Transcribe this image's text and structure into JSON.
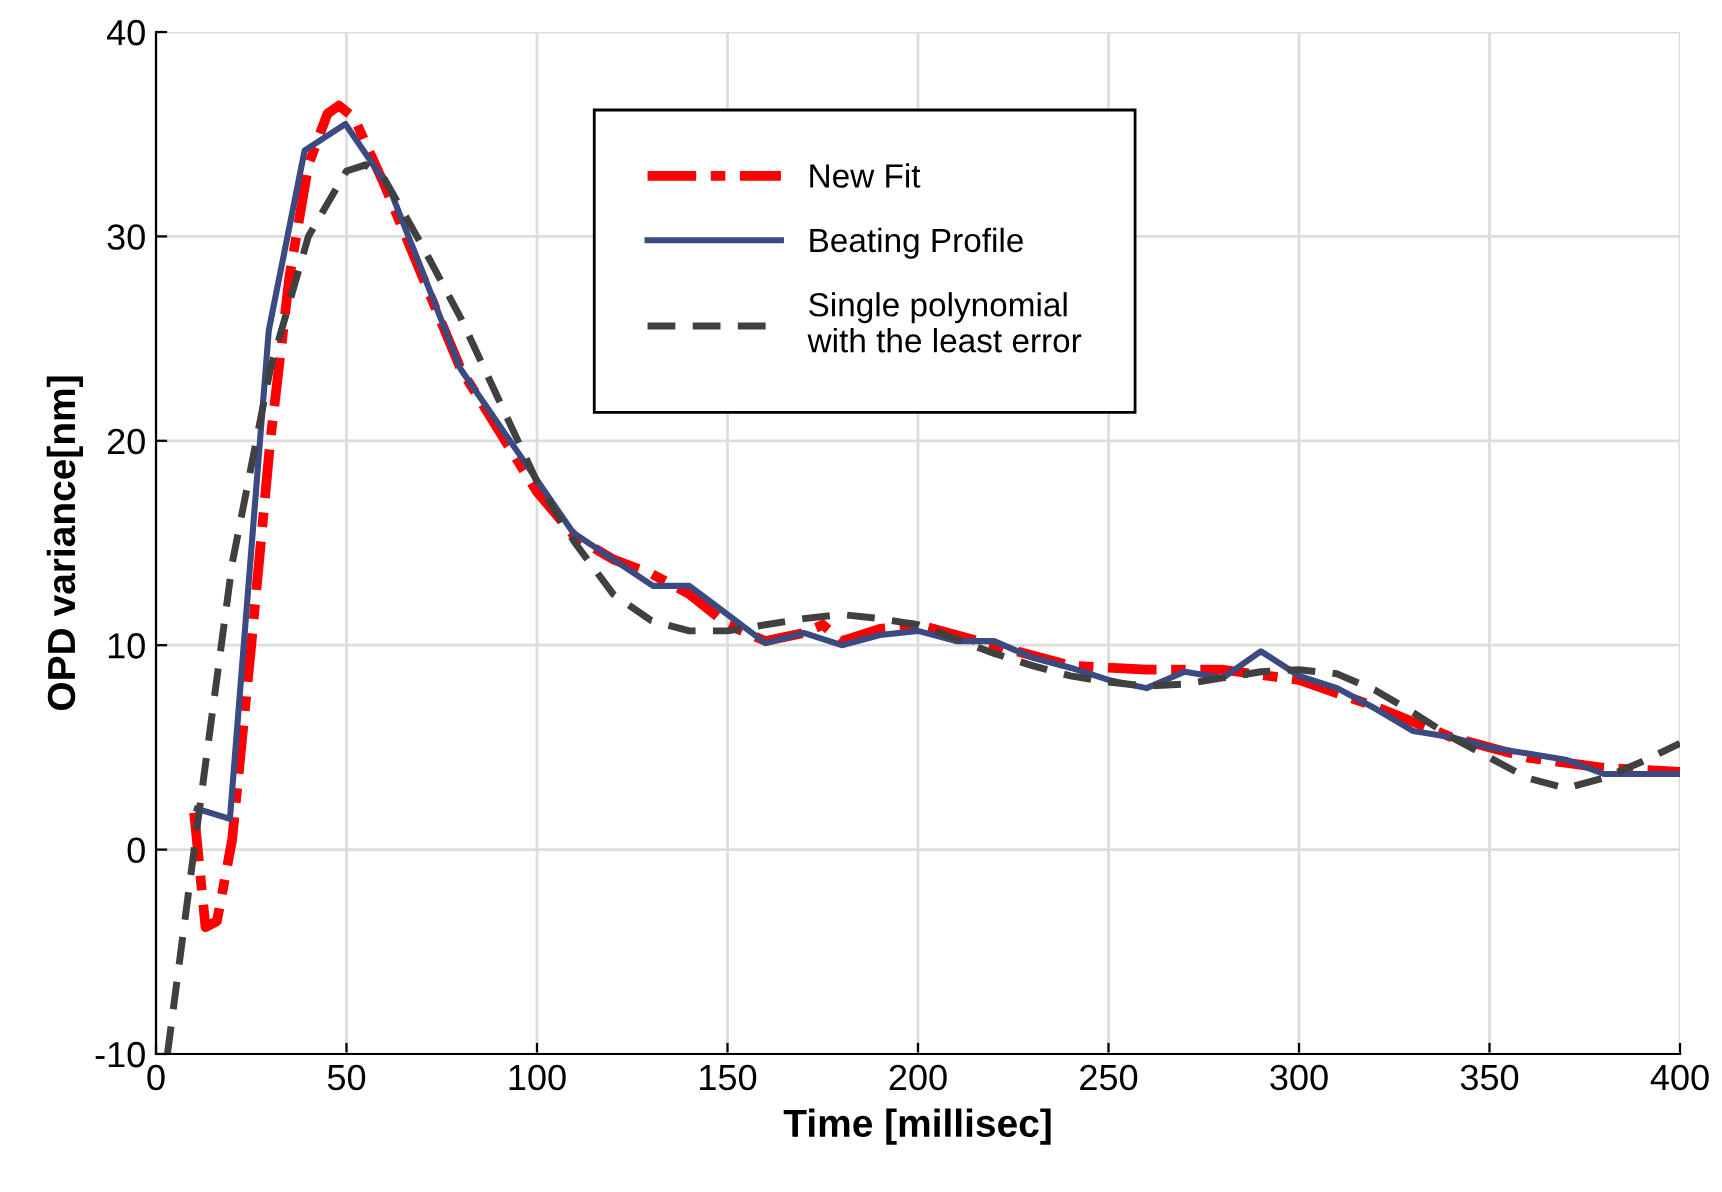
{
  "chart_data": {
    "type": "line",
    "xlabel": "Time [millisec]",
    "ylabel": "OPD variance[nm]",
    "xlim": [
      0,
      400
    ],
    "xticks": [
      0,
      50,
      100,
      150,
      200,
      250,
      300,
      350,
      400
    ],
    "ylim": [
      -10,
      40
    ],
    "yticks": [
      -10,
      0,
      10,
      20,
      30,
      40
    ],
    "grid": true,
    "legend": "top",
    "series": [
      {
        "name": "New Fit",
        "color": "#ff0000",
        "line_style": "dashdot",
        "x": [
          10,
          13,
          16,
          20,
          25,
          30,
          35,
          40,
          45,
          48,
          52,
          60,
          70,
          80,
          90,
          100,
          110,
          120,
          130,
          140,
          150,
          160,
          170,
          175,
          180,
          190,
          200,
          220,
          240,
          260,
          280,
          300,
          320,
          340,
          360,
          380,
          400
        ],
        "values": [
          1.8,
          -3.8,
          -3.5,
          0.5,
          10,
          20,
          28,
          33.5,
          36,
          36.4,
          35.8,
          32.5,
          28,
          23.5,
          20.5,
          17.5,
          15.3,
          14.2,
          13.5,
          12.5,
          11.0,
          10.2,
          10.6,
          11.0,
          10.2,
          10.8,
          11.0,
          10.0,
          9.0,
          8.8,
          8.8,
          8.3,
          7.0,
          5.5,
          4.5,
          4.0,
          3.8
        ]
      },
      {
        "name": "Beating Profile",
        "color": "#3b4a80",
        "line_style": "solid",
        "x": [
          10.7,
          19.4,
          29.6,
          39,
          49.7,
          61.4,
          80,
          95.5,
          109.5,
          130.5,
          140,
          150,
          160,
          170,
          180,
          190,
          200,
          210,
          220,
          230,
          240,
          250,
          260,
          270,
          280,
          290,
          300,
          310,
          320,
          330,
          340,
          350,
          360,
          370,
          380,
          390,
          400
        ],
        "values": [
          2.0,
          1.5,
          25.4,
          34.2,
          35.5,
          32.3,
          23.5,
          19.3,
          15.5,
          12.9,
          12.9,
          11.5,
          10.1,
          10.6,
          10.0,
          10.5,
          10.7,
          10.2,
          10.2,
          9.4,
          8.9,
          8.3,
          7.9,
          8.7,
          8.4,
          9.7,
          8.5,
          7.9,
          6.9,
          5.8,
          5.5,
          5.0,
          4.7,
          4.4,
          3.7,
          3.7,
          3.7
        ]
      },
      {
        "name": "Single polynomial\nwith the least error",
        "color": "#404040",
        "line_style": "dashed",
        "x": [
          3,
          10,
          15,
          20,
          30,
          40,
          50,
          55,
          60,
          70,
          80,
          90,
          100,
          110,
          120,
          130,
          140,
          150,
          160,
          170,
          180,
          190,
          200,
          210,
          220,
          230,
          240,
          250,
          260,
          270,
          280,
          290,
          300,
          310,
          320,
          330,
          340,
          350,
          360,
          370,
          380,
          390,
          400
        ],
        "values": [
          -10,
          0,
          7,
          14,
          23.5,
          30,
          33.2,
          33.5,
          32.8,
          29.5,
          26,
          22,
          18,
          15,
          12.5,
          11.2,
          10.7,
          10.7,
          11.0,
          11.3,
          11.5,
          11.3,
          11.0,
          10.3,
          9.6,
          9.0,
          8.5,
          8.2,
          8.0,
          8.1,
          8.4,
          8.7,
          8.8,
          8.6,
          7.8,
          6.7,
          5.5,
          4.5,
          3.5,
          3.0,
          3.5,
          4.3,
          5.2
        ]
      }
    ]
  }
}
